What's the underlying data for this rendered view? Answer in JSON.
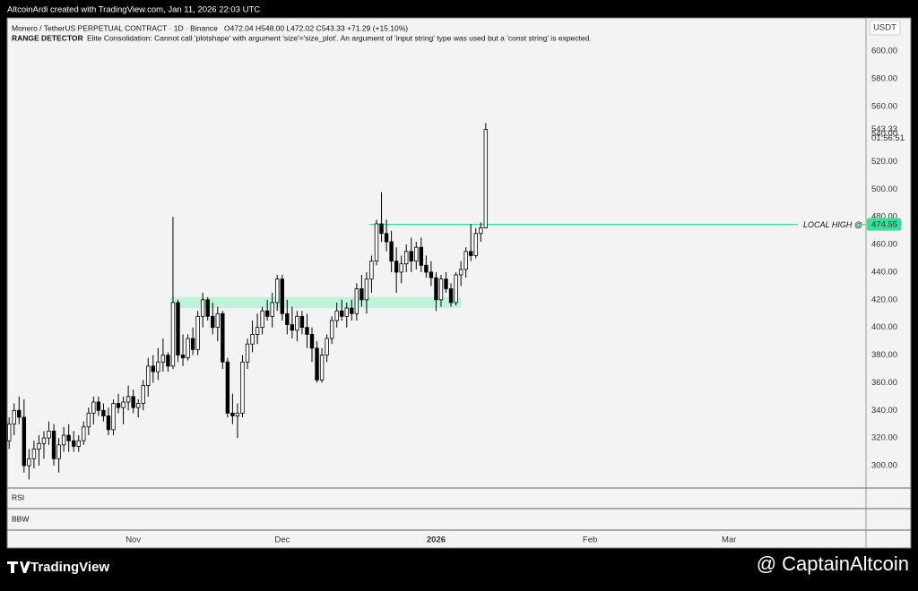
{
  "header": {
    "credit": "AltcoinArdi created with TradingView.com, Jan 11, 2026 22:03 UTC"
  },
  "chart_data": {
    "type": "candlestick",
    "symbol_line": "Monero / TetherUS PERPETUAL CONTRACT · 1D · Binance",
    "ohlc_line": "O472.04 H548.00 L472.02 C543.33 +71.29 (+15.10%)",
    "indicator_name": "RANGE DETECTOR",
    "indicator_message": "Elite Consolidation: Cannot call 'plotshape' with argument 'size'='size_plot'. An argument of 'input string' type was used but a 'const string' is expected.",
    "currency": "USDT",
    "countdown": "01:56:51",
    "up_color": "#ffffff",
    "down_color": "#000000",
    "open": [
      318,
      330,
      340,
      335,
      300,
      305,
      312,
      316,
      320,
      325,
      305,
      315,
      322,
      318,
      314,
      318,
      328,
      338,
      346,
      340,
      336,
      326,
      345,
      342,
      346,
      350,
      342,
      345,
      358,
      372,
      368,
      375,
      380,
      372,
      418,
      380,
      378,
      392,
      384,
      408,
      420,
      408,
      400,
      410,
      375,
      338,
      336,
      338,
      375,
      388,
      395,
      400,
      412,
      408,
      418,
      435,
      410,
      402,
      398,
      408,
      400,
      395,
      385,
      362,
      380,
      392,
      405,
      412,
      408,
      414,
      410,
      428,
      420,
      435,
      448,
      475,
      468,
      462,
      448,
      440,
      446,
      455,
      448,
      458,
      445,
      440,
      436,
      420,
      435,
      428,
      418,
      438,
      442,
      455,
      452,
      468,
      472.04
    ],
    "high": [
      335,
      345,
      350,
      348,
      312,
      318,
      322,
      325,
      332,
      330,
      320,
      328,
      330,
      325,
      322,
      332,
      342,
      350,
      350,
      345,
      342,
      348,
      352,
      350,
      358,
      355,
      348,
      362,
      378,
      380,
      385,
      392,
      382,
      480,
      420,
      395,
      395,
      400,
      412,
      425,
      422,
      418,
      415,
      412,
      378,
      352,
      345,
      380,
      392,
      405,
      410,
      415,
      420,
      425,
      438,
      438,
      420,
      415,
      412,
      412,
      410,
      400,
      390,
      385,
      395,
      408,
      418,
      420,
      418,
      420,
      432,
      438,
      440,
      452,
      478,
      498,
      478,
      470,
      458,
      452,
      460,
      465,
      462,
      465,
      452,
      448,
      440,
      438,
      440,
      432,
      440,
      448,
      458,
      475,
      472,
      476,
      548
    ],
    "low": [
      312,
      322,
      330,
      295,
      290,
      298,
      300,
      305,
      315,
      300,
      295,
      310,
      310,
      310,
      310,
      315,
      322,
      330,
      336,
      332,
      322,
      322,
      338,
      330,
      340,
      338,
      335,
      340,
      350,
      360,
      362,
      368,
      368,
      370,
      375,
      372,
      376,
      380,
      380,
      400,
      405,
      395,
      390,
      370,
      335,
      330,
      320,
      335,
      370,
      382,
      388,
      395,
      405,
      400,
      412,
      405,
      395,
      392,
      390,
      395,
      385,
      375,
      360,
      360,
      375,
      388,
      400,
      405,
      400,
      405,
      405,
      415,
      410,
      425,
      445,
      462,
      455,
      440,
      425,
      432,
      440,
      440,
      442,
      440,
      436,
      430,
      412,
      415,
      425,
      415,
      416,
      430,
      436,
      448,
      450,
      462,
      472.02
    ],
    "close": [
      330,
      340,
      335,
      300,
      305,
      312,
      316,
      320,
      325,
      305,
      315,
      322,
      318,
      314,
      318,
      328,
      338,
      346,
      340,
      336,
      326,
      345,
      342,
      346,
      350,
      342,
      345,
      358,
      372,
      368,
      375,
      380,
      372,
      418,
      380,
      378,
      392,
      384,
      408,
      420,
      408,
      400,
      410,
      375,
      338,
      336,
      338,
      375,
      388,
      395,
      400,
      412,
      408,
      418,
      435,
      410,
      402,
      398,
      408,
      400,
      395,
      385,
      362,
      380,
      392,
      405,
      412,
      408,
      414,
      410,
      428,
      420,
      435,
      448,
      475,
      468,
      462,
      448,
      440,
      446,
      455,
      448,
      458,
      445,
      440,
      436,
      420,
      435,
      428,
      418,
      438,
      442,
      455,
      452,
      468,
      472.04,
      543.33
    ],
    "xlim": [
      -0.4,
      172.6
    ],
    "xticks": [
      {
        "value": 25,
        "label": "Nov"
      },
      {
        "value": 55,
        "label": "Dec"
      },
      {
        "value": 86,
        "label": "2026"
      },
      {
        "value": 117,
        "label": "Feb"
      },
      {
        "value": 145,
        "label": "Mar"
      }
    ],
    "ylim": [
      283.8,
      624
    ],
    "yticks": [
      {
        "value": 300,
        "label": "300.00"
      },
      {
        "value": 320,
        "label": "320.00"
      },
      {
        "value": 340,
        "label": "340.00"
      },
      {
        "value": 360,
        "label": "360.00"
      },
      {
        "value": 380,
        "label": "380.00"
      },
      {
        "value": 400,
        "label": "400.00"
      },
      {
        "value": 420,
        "label": "420.00"
      },
      {
        "value": 440,
        "label": "440.00"
      },
      {
        "value": 460,
        "label": "460.00"
      },
      {
        "value": 480,
        "label": "480.00"
      },
      {
        "value": 500,
        "label": "500.00"
      },
      {
        "value": 520,
        "label": "520.00"
      },
      {
        "value": 540,
        "label": "540.00"
      },
      {
        "value": 560,
        "label": "560.00"
      },
      {
        "value": 580,
        "label": "580.00"
      },
      {
        "value": 600,
        "label": "600.00"
      }
    ],
    "boxes": [
      {
        "x0": 32.5,
        "x1": 91,
        "y0": 414,
        "y1": 422,
        "color": "#bdf3d9"
      }
    ],
    "local_high": {
      "label": "LOCAL HIGH @",
      "value": 474.55,
      "x0": 72.5,
      "color": "#3ddc97"
    },
    "panes": [
      "RSI",
      "BBW"
    ]
  },
  "footer": {
    "logo": "TradingView",
    "watermark": "@ CaptainAltcoin"
  }
}
